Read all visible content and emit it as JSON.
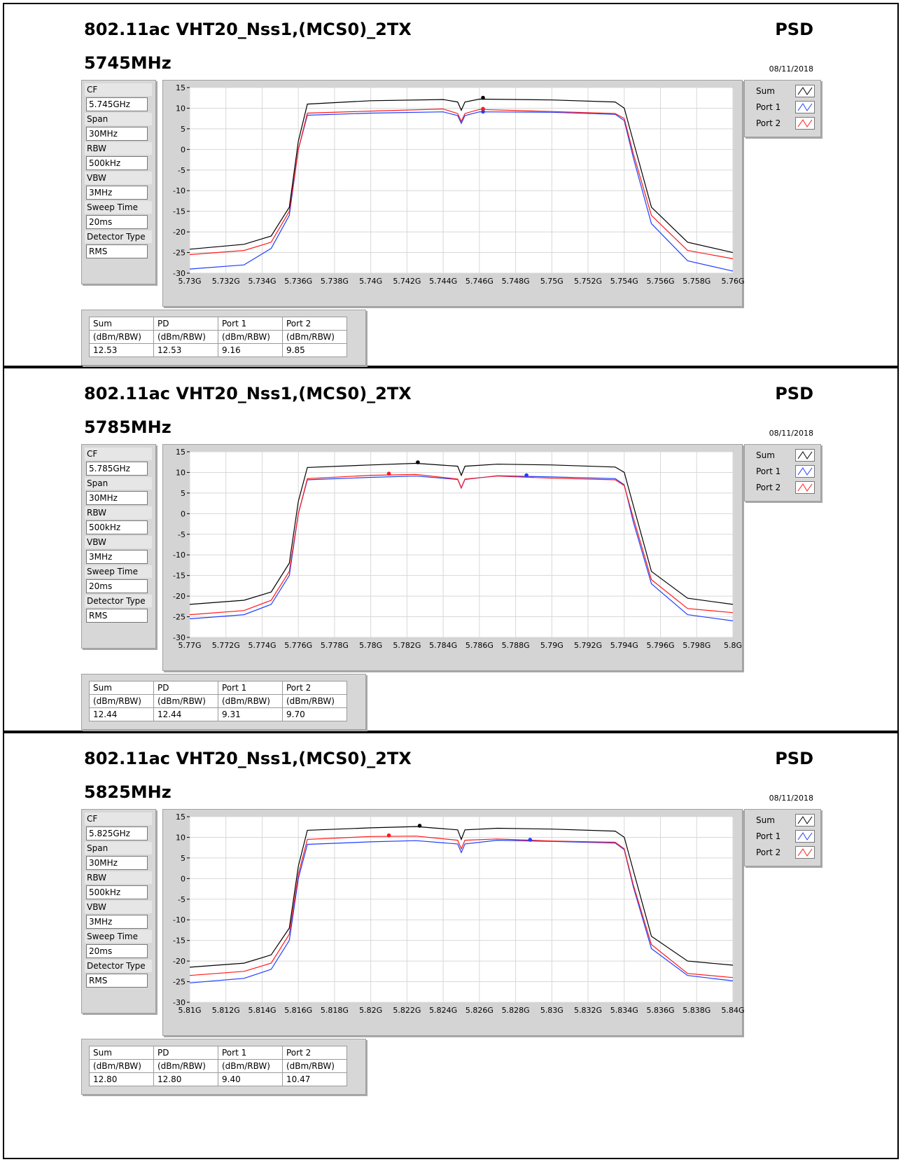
{
  "sections": [
    {
      "title": "802.11ac VHT20_Nss1,(MCS0)_2TX",
      "type_label": "PSD",
      "frequency": "5745MHz",
      "date": "08/11/2018",
      "settings": [
        {
          "label": "CF",
          "value": "5.745GHz"
        },
        {
          "label": "Span",
          "value": "30MHz"
        },
        {
          "label": "RBW",
          "value": "500kHz"
        },
        {
          "label": "VBW",
          "value": "3MHz"
        },
        {
          "label": "Sweep Time",
          "value": "20ms"
        },
        {
          "label": "Detector Type",
          "value": "RMS"
        }
      ],
      "results": {
        "headers": [
          "Sum",
          "PD",
          "Port 1",
          "Port 2"
        ],
        "units": [
          "(dBm/RBW)",
          "(dBm/RBW)",
          "(dBm/RBW)",
          "(dBm/RBW)"
        ],
        "values": [
          "12.53",
          "12.53",
          "9.16",
          "9.85"
        ]
      }
    },
    {
      "title": "802.11ac VHT20_Nss1,(MCS0)_2TX",
      "type_label": "PSD",
      "frequency": "5785MHz",
      "date": "08/11/2018",
      "settings": [
        {
          "label": "CF",
          "value": "5.785GHz"
        },
        {
          "label": "Span",
          "value": "30MHz"
        },
        {
          "label": "RBW",
          "value": "500kHz"
        },
        {
          "label": "VBW",
          "value": "3MHz"
        },
        {
          "label": "Sweep Time",
          "value": "20ms"
        },
        {
          "label": "Detector Type",
          "value": "RMS"
        }
      ],
      "results": {
        "headers": [
          "Sum",
          "PD",
          "Port 1",
          "Port 2"
        ],
        "units": [
          "(dBm/RBW)",
          "(dBm/RBW)",
          "(dBm/RBW)",
          "(dBm/RBW)"
        ],
        "values": [
          "12.44",
          "12.44",
          "9.31",
          "9.70"
        ]
      }
    },
    {
      "title": "802.11ac VHT20_Nss1,(MCS0)_2TX",
      "type_label": "PSD",
      "frequency": "5825MHz",
      "date": "08/11/2018",
      "settings": [
        {
          "label": "CF",
          "value": "5.825GHz"
        },
        {
          "label": "Span",
          "value": "30MHz"
        },
        {
          "label": "RBW",
          "value": "500kHz"
        },
        {
          "label": "VBW",
          "value": "3MHz"
        },
        {
          "label": "Sweep Time",
          "value": "20ms"
        },
        {
          "label": "Detector Type",
          "value": "RMS"
        }
      ],
      "results": {
        "headers": [
          "Sum",
          "PD",
          "Port 1",
          "Port 2"
        ],
        "units": [
          "(dBm/RBW)",
          "(dBm/RBW)",
          "(dBm/RBW)",
          "(dBm/RBW)"
        ],
        "values": [
          "12.80",
          "12.80",
          "9.40",
          "10.47"
        ]
      }
    }
  ],
  "legend": [
    {
      "name": "Sum",
      "color": "#000000"
    },
    {
      "name": "Port 1",
      "color": "#1f3fff"
    },
    {
      "name": "Port 2",
      "color": "#ff1a1a"
    }
  ],
  "chart_data": [
    {
      "type": "line",
      "ylim": [
        -30,
        15
      ],
      "xlim": [
        5.73,
        5.76
      ],
      "yticks": [
        "15",
        "10",
        "5",
        "0",
        "-5",
        "-10",
        "-15",
        "-20",
        "-25",
        "-30"
      ],
      "xticks": [
        "5.73G",
        "5.732G",
        "5.734G",
        "5.736G",
        "5.738G",
        "5.74G",
        "5.742G",
        "5.744G",
        "5.746G",
        "5.748G",
        "5.75G",
        "5.752G",
        "5.754G",
        "5.756G",
        "5.758G",
        "5.76G"
      ],
      "grid": true,
      "legend_position": "right",
      "series": [
        {
          "name": "Sum",
          "x": [
            5.73,
            5.733,
            5.7345,
            5.7355,
            5.736,
            5.7365,
            5.74,
            5.744,
            5.7448,
            5.745,
            5.7452,
            5.746,
            5.75,
            5.7535,
            5.754,
            5.7545,
            5.7555,
            5.7575,
            5.76
          ],
          "y": [
            -24.2,
            -23,
            -21,
            -14,
            2,
            11,
            11.8,
            12.1,
            11.5,
            9.5,
            11.5,
            12.2,
            12,
            11.5,
            10,
            2,
            -14,
            -22.5,
            -25
          ]
        },
        {
          "name": "Port 1",
          "x": [
            5.73,
            5.733,
            5.7345,
            5.7355,
            5.736,
            5.7365,
            5.74,
            5.744,
            5.7448,
            5.745,
            5.7452,
            5.746,
            5.75,
            5.7535,
            5.754,
            5.7545,
            5.7555,
            5.7575,
            5.76
          ],
          "y": [
            -29,
            -28,
            -24,
            -16,
            0,
            8.3,
            8.8,
            9.1,
            8.2,
            6.3,
            8.2,
            9.1,
            9,
            8.5,
            7,
            -2,
            -18,
            -27,
            -29.5
          ]
        },
        {
          "name": "Port 2",
          "x": [
            5.73,
            5.733,
            5.7345,
            5.7355,
            5.736,
            5.7365,
            5.74,
            5.744,
            5.7448,
            5.745,
            5.7452,
            5.746,
            5.75,
            5.7535,
            5.754,
            5.7545,
            5.7555,
            5.7575,
            5.76
          ],
          "y": [
            -25.5,
            -24.5,
            -22.5,
            -15,
            0,
            8.8,
            9.3,
            9.8,
            8.7,
            6.8,
            8.7,
            9.7,
            9.2,
            8.7,
            7.5,
            -1,
            -16,
            -24.5,
            -26.5
          ]
        }
      ],
      "markers": [
        {
          "series": "Sum",
          "x": 5.7462,
          "y": 12.53
        },
        {
          "series": "Port 1",
          "x": 5.7462,
          "y": 9.16
        },
        {
          "series": "Port 2",
          "x": 5.7462,
          "y": 9.85
        }
      ]
    },
    {
      "type": "line",
      "ylim": [
        -30,
        15
      ],
      "xlim": [
        5.77,
        5.8
      ],
      "yticks": [
        "15",
        "10",
        "5",
        "0",
        "-5",
        "-10",
        "-15",
        "-20",
        "-25",
        "-30"
      ],
      "xticks": [
        "5.77G",
        "5.772G",
        "5.774G",
        "5.776G",
        "5.778G",
        "5.78G",
        "5.782G",
        "5.784G",
        "5.786G",
        "5.788G",
        "5.79G",
        "5.792G",
        "5.794G",
        "5.796G",
        "5.798G",
        "5.8G"
      ],
      "grid": true,
      "legend_position": "right",
      "series": [
        {
          "name": "Sum",
          "x": [
            5.77,
            5.773,
            5.7745,
            5.7755,
            5.776,
            5.7765,
            5.78,
            5.7825,
            5.7848,
            5.785,
            5.7852,
            5.787,
            5.79,
            5.7935,
            5.794,
            5.7945,
            5.7955,
            5.7975,
            5.8
          ],
          "y": [
            -22,
            -21,
            -19,
            -12,
            3,
            11.2,
            11.8,
            12.2,
            11.5,
            9.3,
            11.5,
            12,
            11.8,
            11.3,
            10,
            2,
            -14,
            -20.5,
            -22
          ]
        },
        {
          "name": "Port 1",
          "x": [
            5.77,
            5.773,
            5.7745,
            5.7755,
            5.776,
            5.7765,
            5.78,
            5.7825,
            5.7848,
            5.785,
            5.7852,
            5.787,
            5.79,
            5.7935,
            5.794,
            5.7945,
            5.7955,
            5.7975,
            5.8
          ],
          "y": [
            -25.5,
            -24.5,
            -22,
            -15,
            0,
            8.2,
            8.8,
            9.1,
            8.3,
            6.2,
            8.3,
            9.2,
            8.9,
            8.5,
            7,
            -2,
            -17,
            -24.5,
            -26
          ]
        },
        {
          "name": "Port 2",
          "x": [
            5.77,
            5.773,
            5.7745,
            5.7755,
            5.776,
            5.7765,
            5.78,
            5.7825,
            5.7848,
            5.785,
            5.7852,
            5.787,
            5.79,
            5.7935,
            5.794,
            5.7945,
            5.7955,
            5.7975,
            5.8
          ],
          "y": [
            -24.5,
            -23.5,
            -21,
            -14,
            0,
            8.5,
            9.3,
            9.5,
            8.4,
            6.3,
            8.4,
            9.1,
            8.6,
            8.2,
            6.8,
            -1,
            -16,
            -23,
            -24
          ]
        }
      ],
      "markers": [
        {
          "series": "Sum",
          "x": 5.7826,
          "y": 12.44
        },
        {
          "series": "Port 1",
          "x": 5.7886,
          "y": 9.31
        },
        {
          "series": "Port 2",
          "x": 5.781,
          "y": 9.7
        }
      ]
    },
    {
      "type": "line",
      "ylim": [
        -30,
        15
      ],
      "xlim": [
        5.81,
        5.84
      ],
      "yticks": [
        "15",
        "10",
        "5",
        "0",
        "-5",
        "-10",
        "-15",
        "-20",
        "-25",
        "-30"
      ],
      "xticks": [
        "5.81G",
        "5.812G",
        "5.814G",
        "5.816G",
        "5.818G",
        "5.82G",
        "5.822G",
        "5.824G",
        "5.826G",
        "5.828G",
        "5.83G",
        "5.832G",
        "5.834G",
        "5.836G",
        "5.838G",
        "5.84G"
      ],
      "grid": true,
      "legend_position": "right",
      "series": [
        {
          "name": "Sum",
          "x": [
            5.81,
            5.813,
            5.8145,
            5.8155,
            5.816,
            5.8165,
            5.82,
            5.8225,
            5.8248,
            5.825,
            5.8252,
            5.827,
            5.83,
            5.8335,
            5.834,
            5.8345,
            5.8355,
            5.8375,
            5.84
          ],
          "y": [
            -21.5,
            -20.5,
            -18.5,
            -12,
            3,
            11.7,
            12.3,
            12.6,
            11.8,
            9.5,
            11.8,
            12.2,
            12,
            11.5,
            10,
            2,
            -14,
            -20,
            -21
          ]
        },
        {
          "name": "Port 1",
          "x": [
            5.81,
            5.813,
            5.8145,
            5.8155,
            5.816,
            5.8165,
            5.82,
            5.8225,
            5.8248,
            5.825,
            5.8252,
            5.827,
            5.83,
            5.8335,
            5.834,
            5.8345,
            5.8355,
            5.8375,
            5.84
          ],
          "y": [
            -25.3,
            -24.2,
            -22,
            -15,
            0,
            8.3,
            8.9,
            9.2,
            8.4,
            6.3,
            8.4,
            9.3,
            9,
            8.6,
            7,
            -2,
            -17,
            -23.5,
            -24.8
          ]
        },
        {
          "name": "Port 2",
          "x": [
            5.81,
            5.813,
            5.8145,
            5.8155,
            5.816,
            5.8165,
            5.82,
            5.8225,
            5.8248,
            5.825,
            5.8252,
            5.827,
            5.83,
            5.8335,
            5.834,
            5.8345,
            5.8355,
            5.8375,
            5.84
          ],
          "y": [
            -23.5,
            -22.5,
            -20.5,
            -13.5,
            1,
            9.5,
            10.2,
            10.3,
            9.3,
            7.2,
            9.3,
            9.6,
            9.1,
            8.8,
            7.2,
            -1.5,
            -16,
            -23,
            -24
          ]
        }
      ],
      "markers": [
        {
          "series": "Sum",
          "x": 5.8227,
          "y": 12.8
        },
        {
          "series": "Port 1",
          "x": 5.8288,
          "y": 9.4
        },
        {
          "series": "Port 2",
          "x": 5.821,
          "y": 10.47
        }
      ]
    }
  ]
}
